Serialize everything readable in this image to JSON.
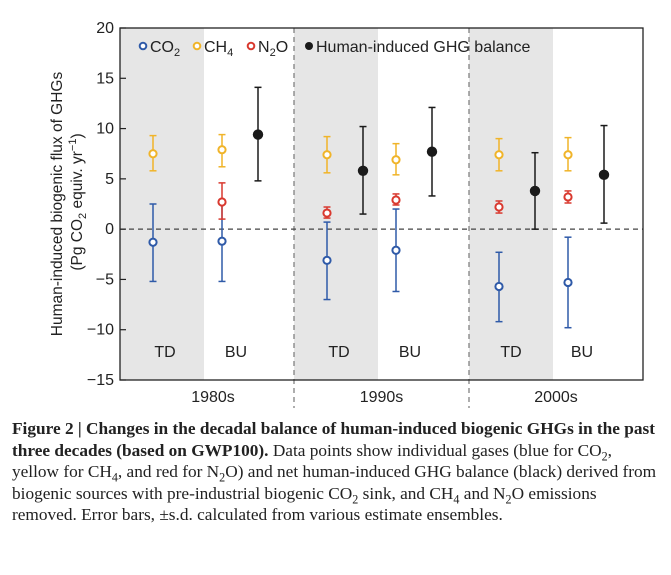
{
  "chart_data": {
    "type": "scatter",
    "ylabel_line1": "Human-induced biogenic flux of GHGs",
    "ylabel_line2_prefix": "(Pg CO",
    "ylabel_line2_sub": "2",
    "ylabel_line2_mid": " equiv. yr",
    "ylabel_line2_sup": "−1",
    "ylabel_line2_suffix": ")",
    "ylim": [
      -15,
      20
    ],
    "yticks": [
      20,
      15,
      10,
      5,
      0,
      -5,
      -10,
      -15
    ],
    "ytick_labels": [
      "20",
      "15",
      "10",
      "5",
      "0",
      "−5",
      "−10",
      "−15"
    ],
    "decades": [
      "1980s",
      "1990s",
      "2000s"
    ],
    "method_labels": [
      "TD",
      "BU"
    ],
    "legend": [
      {
        "key": "co2",
        "prefix": "CO",
        "sub": "2",
        "color": "#2f5aa8"
      },
      {
        "key": "ch4",
        "prefix": "CH",
        "sub": "4",
        "color": "#f0b429"
      },
      {
        "key": "n2o",
        "prefix": "N",
        "sub": "2",
        "suffix": "O",
        "color": "#d9392f"
      },
      {
        "key": "balance",
        "prefix": "Human-induced GHG balance",
        "sub": "",
        "color": "#1a1a1a"
      }
    ],
    "points": [
      {
        "decade": "1980s",
        "method": "TD",
        "gas": "co2",
        "value": -1.3,
        "err_low": -5.2,
        "err_high": 2.5
      },
      {
        "decade": "1980s",
        "method": "TD",
        "gas": "ch4",
        "value": 7.5,
        "err_low": 5.8,
        "err_high": 9.3
      },
      {
        "decade": "1980s",
        "method": "BU",
        "gas": "co2",
        "value": -1.2,
        "err_low": -5.2,
        "err_high": 2.7
      },
      {
        "decade": "1980s",
        "method": "BU",
        "gas": "ch4",
        "value": 7.9,
        "err_low": 6.2,
        "err_high": 9.4
      },
      {
        "decade": "1980s",
        "method": "BU",
        "gas": "n2o",
        "value": 2.7,
        "err_low": 1.0,
        "err_high": 4.6
      },
      {
        "decade": "1980s",
        "method": "BU",
        "gas": "balance",
        "value": 9.4,
        "err_low": 4.8,
        "err_high": 14.1
      },
      {
        "decade": "1990s",
        "method": "TD",
        "gas": "co2",
        "value": -3.1,
        "err_low": -7.0,
        "err_high": 0.7
      },
      {
        "decade": "1990s",
        "method": "TD",
        "gas": "ch4",
        "value": 7.4,
        "err_low": 5.6,
        "err_high": 9.2
      },
      {
        "decade": "1990s",
        "method": "TD",
        "gas": "n2o",
        "value": 1.6,
        "err_low": 1.1,
        "err_high": 2.2
      },
      {
        "decade": "1990s",
        "method": "TD",
        "gas": "balance",
        "value": 5.8,
        "err_low": 1.5,
        "err_high": 10.2
      },
      {
        "decade": "1990s",
        "method": "BU",
        "gas": "co2",
        "value": -2.1,
        "err_low": -6.2,
        "err_high": 2.0
      },
      {
        "decade": "1990s",
        "method": "BU",
        "gas": "ch4",
        "value": 6.9,
        "err_low": 5.4,
        "err_high": 8.5
      },
      {
        "decade": "1990s",
        "method": "BU",
        "gas": "n2o",
        "value": 2.9,
        "err_low": 2.4,
        "err_high": 3.5
      },
      {
        "decade": "1990s",
        "method": "BU",
        "gas": "balance",
        "value": 7.7,
        "err_low": 3.3,
        "err_high": 12.1
      },
      {
        "decade": "2000s",
        "method": "TD",
        "gas": "co2",
        "value": -5.7,
        "err_low": -9.2,
        "err_high": -2.3
      },
      {
        "decade": "2000s",
        "method": "TD",
        "gas": "ch4",
        "value": 7.4,
        "err_low": 5.8,
        "err_high": 9.0
      },
      {
        "decade": "2000s",
        "method": "TD",
        "gas": "n2o",
        "value": 2.2,
        "err_low": 1.6,
        "err_high": 2.8
      },
      {
        "decade": "2000s",
        "method": "TD",
        "gas": "balance",
        "value": 3.8,
        "err_low": 0.0,
        "err_high": 7.6
      },
      {
        "decade": "2000s",
        "method": "BU",
        "gas": "co2",
        "value": -5.3,
        "err_low": -9.8,
        "err_high": -0.8
      },
      {
        "decade": "2000s",
        "method": "BU",
        "gas": "ch4",
        "value": 7.4,
        "err_low": 5.8,
        "err_high": 9.1
      },
      {
        "decade": "2000s",
        "method": "BU",
        "gas": "n2o",
        "value": 3.2,
        "err_low": 2.6,
        "err_high": 3.8
      },
      {
        "decade": "2000s",
        "method": "BU",
        "gas": "balance",
        "value": 5.4,
        "err_low": 0.6,
        "err_high": 10.3
      }
    ]
  },
  "caption": {
    "title": "Figure 2 | Changes in the decadal balance of human-induced biogenic GHGs in the past three decades (based on GWP100).",
    "body_1": " Data points show individual gases (blue for CO",
    "sub_1": "2",
    "body_2": ", yellow for CH",
    "sub_2": "4",
    "body_3": ", and red for N",
    "sub_3": "2",
    "body_4": "O) and net human-induced GHG balance (black) derived from biogenic sources with pre-industrial biogenic CO",
    "sub_4": "2",
    "body_5": " sink, and CH",
    "sub_5": "4",
    "body_6": " and N",
    "sub_6": "2",
    "body_7": "O emissions removed. Error bars, ±s.d. calculated from various estimate ensembles."
  }
}
